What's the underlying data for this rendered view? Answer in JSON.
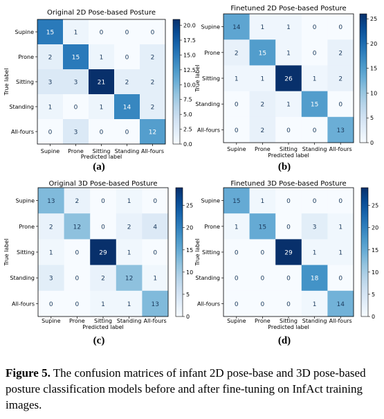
{
  "chart_data": [
    {
      "type": "heatmap",
      "title": "Original 2D Pose-based Posture",
      "xlabel": "Predicted label",
      "ylabel": "True label",
      "categories": [
        "Supine",
        "Prone",
        "Sitting",
        "Standing",
        "All-fours"
      ],
      "matrix": [
        [
          15,
          1,
          0,
          0,
          0
        ],
        [
          2,
          15,
          1,
          0,
          2
        ],
        [
          3,
          3,
          21,
          2,
          2
        ],
        [
          1,
          0,
          1,
          14,
          2
        ],
        [
          0,
          3,
          0,
          0,
          12
        ]
      ],
      "colorbar": {
        "ticks": [
          "0.0",
          "2.5",
          "5.0",
          "7.5",
          "10.0",
          "12.5",
          "15.0",
          "17.5",
          "20.0"
        ],
        "min": 0,
        "max": 21
      },
      "sub_label": "(a)"
    },
    {
      "type": "heatmap",
      "title": "Finetuned 2D Pose-based Posture",
      "xlabel": "Predicted label",
      "ylabel": "True label",
      "categories": [
        "Supine",
        "Prone",
        "Sitting",
        "Standing",
        "All-fours"
      ],
      "matrix": [
        [
          14,
          1,
          1,
          0,
          0
        ],
        [
          2,
          15,
          1,
          0,
          2
        ],
        [
          1,
          1,
          26,
          1,
          2
        ],
        [
          0,
          2,
          1,
          15,
          0
        ],
        [
          0,
          2,
          0,
          0,
          13
        ]
      ],
      "colorbar": {
        "ticks": [
          "0",
          "5",
          "10",
          "15",
          "20",
          "25"
        ],
        "min": 0,
        "max": 26
      },
      "sub_label": "(b)"
    },
    {
      "type": "heatmap",
      "title": "Original 3D Pose-based Posture",
      "xlabel": "Predicted label",
      "ylabel": "True label",
      "categories": [
        "Supine",
        "Prone",
        "Sitting",
        "Standing",
        "All-fours"
      ],
      "matrix": [
        [
          13,
          2,
          0,
          1,
          0
        ],
        [
          2,
          12,
          0,
          2,
          4
        ],
        [
          1,
          0,
          29,
          1,
          0
        ],
        [
          3,
          0,
          2,
          12,
          1
        ],
        [
          0,
          0,
          1,
          1,
          13
        ]
      ],
      "colorbar": {
        "ticks": [
          "0",
          "5",
          "10",
          "15",
          "20",
          "25"
        ],
        "min": 0,
        "max": 29
      },
      "sub_label": "(c)"
    },
    {
      "type": "heatmap",
      "title": "Finetuned 3D Pose-based Posture",
      "xlabel": "Predicted label",
      "ylabel": "True label",
      "categories": [
        "Supine",
        "Prone",
        "Sitting",
        "Standing",
        "All-fours"
      ],
      "matrix": [
        [
          15,
          1,
          0,
          0,
          0
        ],
        [
          1,
          15,
          0,
          3,
          1
        ],
        [
          0,
          0,
          29,
          1,
          1
        ],
        [
          0,
          0,
          0,
          18,
          0
        ],
        [
          0,
          0,
          0,
          1,
          14
        ]
      ],
      "colorbar": {
        "ticks": [
          "0",
          "5",
          "10",
          "15",
          "20",
          "25"
        ],
        "min": 0,
        "max": 29
      },
      "sub_label": "(d)"
    }
  ],
  "caption": {
    "label": "Figure 5.",
    "text": " The confusion matrices of infant 2D pose-base and 3D pose-based posture classification models before and after fine-tuning on InfAct training images."
  }
}
